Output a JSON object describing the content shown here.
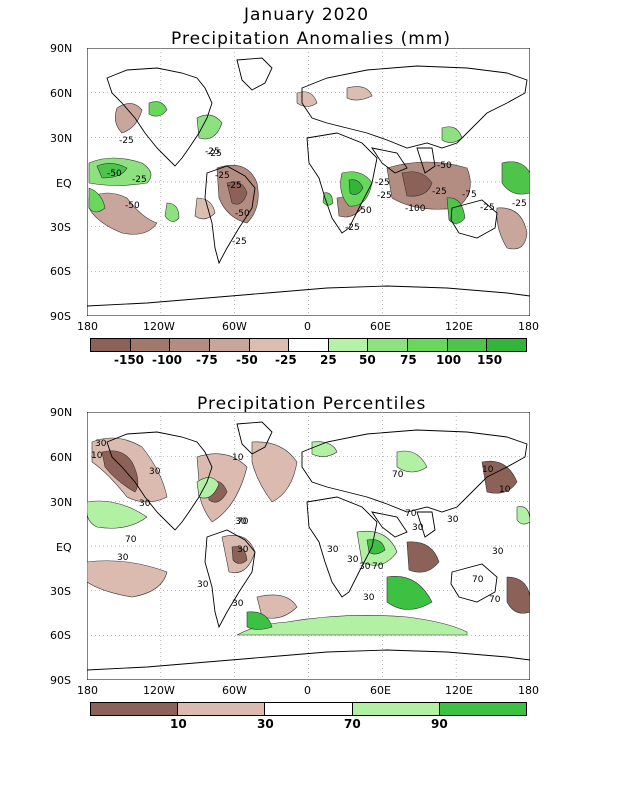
{
  "header": {
    "title_line1": "January 2020",
    "title_line2": "Precipitation Anomalies (mm)"
  },
  "panel2": {
    "title": "Precipitation Percentiles"
  },
  "lat_labels": [
    "90N",
    "60N",
    "30N",
    "EQ",
    "30S",
    "60S",
    "90S"
  ],
  "lon_labels": [
    "180",
    "120W",
    "60W",
    "0",
    "60E",
    "120E",
    "180"
  ],
  "anomaly_colorbar": {
    "labels": [
      "-150",
      "-100",
      "-75",
      "-50",
      "-25",
      "25",
      "50",
      "75",
      "100",
      "150"
    ],
    "colors": [
      "#8c6258",
      "#a2786c",
      "#b48d82",
      "#c8a69b",
      "#dcbdb2",
      "#ffffff",
      "#b6f2a6",
      "#8de27f",
      "#68d75c",
      "#4ec54a",
      "#33b43a"
    ]
  },
  "percentile_colorbar": {
    "labels": [
      "10",
      "30",
      "70",
      "90"
    ],
    "colors": [
      "#8c6258",
      "#dbbbb0",
      "#ffffff",
      "#b2f1a3",
      "#3cc143"
    ]
  },
  "anomaly_contour_labels": [
    "-25",
    "-50",
    "-25",
    "-25",
    "-25",
    "-25",
    "-50",
    "-50",
    "-25",
    "-25",
    "-100",
    "-25",
    "-75",
    "-50",
    "-25",
    "-25",
    "-25",
    "-50",
    "-25",
    "-25"
  ],
  "percentile_contour_labels": [
    "30",
    "10",
    "30",
    "10",
    "30",
    "30",
    "70",
    "30",
    "30",
    "70",
    "30",
    "70",
    "30",
    "30",
    "30",
    "70",
    "30",
    "70",
    "10",
    "30",
    "10",
    "30",
    "30",
    "70",
    "30",
    "70"
  ]
}
